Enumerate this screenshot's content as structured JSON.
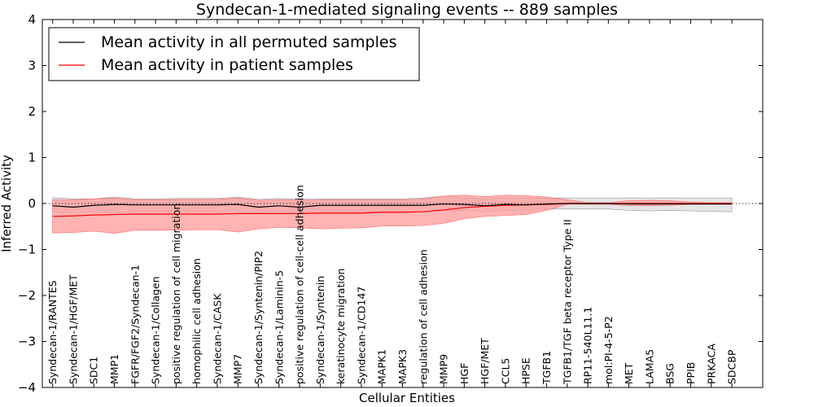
{
  "chart_data": {
    "type": "line",
    "title": "Syndecan-1-mediated signaling events -- 889 samples",
    "xlabel": "Cellular Entities",
    "ylabel": "Inferred Activity",
    "ylim": [
      -4,
      4
    ],
    "yticks": [
      "4",
      "3",
      "2",
      "1",
      "0",
      "−1",
      "−2",
      "−3",
      "−4"
    ],
    "ytick_values": [
      4,
      3,
      2,
      1,
      0,
      -1,
      -2,
      -3,
      -4
    ],
    "legend_position": "top-left",
    "categories": [
      "Syndecan-1/RANTES",
      "Syndecan-1/HGF/MET",
      "SDC1",
      "MMP1",
      "FGFR/FGF2/Syndecan-1",
      "Syndecan-1/Collagen",
      "positive regulation of cell migration",
      "homophilic cell adhesion",
      "Syndecan-1/CASK",
      "MMP7",
      "Syndecan-1/Syntenin/PIP2",
      "Syndecan-1/Laminin-5",
      "positive regulation of cell-cell adhesion",
      "Syndecan-1/Syntenin",
      "keratinocyte migration",
      "Syndecan-1/CD147",
      "MAPK1",
      "MAPK3",
      "regulation of cell adhesion",
      "MMP9",
      "HGF",
      "HGF/MET",
      "CCL5",
      "HPSE",
      "TGFB1",
      "TGFB1/TGF beta receptor Type II",
      "RP11-540L11.1",
      "mol:PI-4-5-P2",
      "MET",
      "LAMA5",
      "BSG",
      "PPIB",
      "PRKACA",
      "SDCBP"
    ],
    "series": [
      {
        "name": "Mean activity in all permuted samples",
        "color": "#000000",
        "values": [
          -0.05,
          -0.08,
          -0.04,
          -0.02,
          -0.03,
          -0.03,
          -0.03,
          -0.03,
          -0.03,
          -0.02,
          -0.08,
          -0.05,
          -0.08,
          -0.04,
          -0.04,
          -0.04,
          -0.04,
          -0.04,
          -0.04,
          -0.01,
          -0.02,
          -0.05,
          -0.02,
          -0.03,
          -0.01,
          0.0,
          0.0,
          0.0,
          -0.01,
          -0.01,
          -0.01,
          -0.01,
          -0.01,
          -0.01
        ],
        "band_upper": [
          0.13,
          0.1,
          0.1,
          0.14,
          0.1,
          0.1,
          0.11,
          0.11,
          0.11,
          0.14,
          0.09,
          0.11,
          0.09,
          0.1,
          0.1,
          0.1,
          0.1,
          0.1,
          0.12,
          0.16,
          0.12,
          0.1,
          0.12,
          0.11,
          0.12,
          0.12,
          0.12,
          0.12,
          0.12,
          0.12,
          0.12,
          0.12,
          0.12,
          0.12
        ],
        "band_lower": [
          -0.18,
          -0.2,
          -0.18,
          -0.2,
          -0.18,
          -0.18,
          -0.18,
          -0.18,
          -0.18,
          -0.2,
          -0.2,
          -0.19,
          -0.2,
          -0.18,
          -0.18,
          -0.18,
          -0.18,
          -0.18,
          -0.18,
          -0.15,
          -0.15,
          -0.17,
          -0.15,
          -0.15,
          -0.12,
          -0.12,
          -0.12,
          -0.12,
          -0.15,
          -0.16,
          -0.15,
          -0.16,
          -0.17,
          -0.18
        ]
      },
      {
        "name": "Mean activity in patient samples",
        "color": "#ff0000",
        "band_color": "#ff9a9a",
        "values": [
          -0.28,
          -0.27,
          -0.25,
          -0.24,
          -0.23,
          -0.23,
          -0.23,
          -0.23,
          -0.23,
          -0.22,
          -0.22,
          -0.22,
          -0.22,
          -0.21,
          -0.21,
          -0.21,
          -0.19,
          -0.19,
          -0.18,
          -0.14,
          -0.09,
          -0.06,
          -0.04,
          -0.03,
          -0.02,
          0.0,
          0.0,
          0.0,
          0.0,
          0.0,
          0.0,
          0.0,
          0.0,
          0.0
        ],
        "band_upper": [
          0.08,
          0.08,
          0.1,
          0.12,
          0.08,
          0.08,
          0.09,
          0.09,
          0.09,
          0.12,
          0.07,
          0.08,
          0.07,
          0.08,
          0.08,
          0.08,
          0.08,
          0.08,
          0.1,
          0.16,
          0.18,
          0.15,
          0.18,
          0.17,
          0.14,
          0.08,
          0.02,
          0.02,
          0.06,
          0.07,
          0.06,
          0.03,
          0.02,
          0.02
        ],
        "band_lower": [
          -0.64,
          -0.63,
          -0.6,
          -0.65,
          -0.58,
          -0.58,
          -0.58,
          -0.57,
          -0.57,
          -0.62,
          -0.55,
          -0.52,
          -0.53,
          -0.55,
          -0.54,
          -0.53,
          -0.49,
          -0.49,
          -0.48,
          -0.43,
          -0.33,
          -0.28,
          -0.26,
          -0.24,
          -0.15,
          -0.02,
          -0.02,
          -0.02,
          -0.05,
          -0.05,
          -0.04,
          -0.02,
          -0.02,
          -0.02
        ]
      }
    ],
    "reference_line": {
      "value": 0,
      "style": "dotted"
    }
  }
}
